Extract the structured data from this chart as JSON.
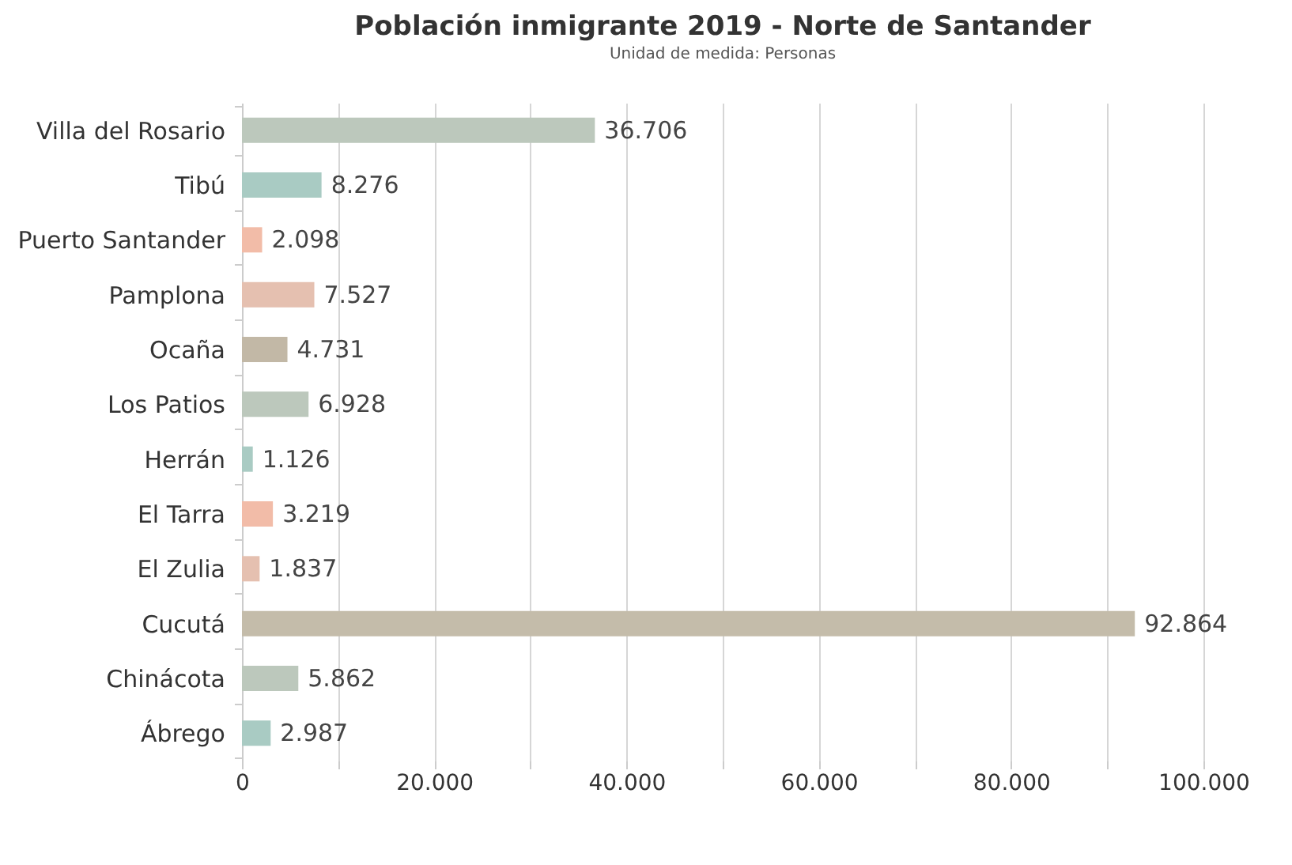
{
  "chart_data": {
    "type": "bar",
    "orientation": "horizontal",
    "title": "Población inmigrante 2019 - Norte de Santander",
    "subtitle": "Unidad de medida: Personas",
    "categories": [
      "Villa del Rosario",
      "Tibú",
      "Puerto Santander",
      "Pamplona",
      "Ocaña",
      "Los Patios",
      "Herrán",
      "El Tarra",
      "El Zulia",
      "Cucutá",
      "Chinácota",
      "Ábrego"
    ],
    "values": [
      36706,
      8276,
      2098,
      7527,
      4731,
      6928,
      1126,
      3219,
      1837,
      92864,
      5862,
      2987
    ],
    "value_labels": [
      "36.706",
      "8.276",
      "2.098",
      "7.527",
      "4.731",
      "6.928",
      "1.126",
      "3.219",
      "1.837",
      "92.864",
      "5.862",
      "2.987"
    ],
    "colors": [
      "#bcc8bc",
      "#a9cbc3",
      "#f2bca8",
      "#e5c0b0",
      "#c2b8a6",
      "#bcc8bc",
      "#a9cbc3",
      "#f2bca8",
      "#e5c0b0",
      "#c4bcaa",
      "#bcc8bc",
      "#a9cbc3"
    ],
    "xlim": [
      0,
      100000
    ],
    "xticks": [
      0,
      {
        "value": 10000,
        "label": null
      },
      {
        "value": 20000,
        "label": "20.000"
      },
      {
        "value": 30000,
        "label": null
      },
      {
        "value": 40000,
        "label": "40.000"
      },
      {
        "value": 50000,
        "label": null
      },
      {
        "value": 60000,
        "label": "60.000"
      },
      {
        "value": 70000,
        "label": null
      },
      {
        "value": 80000,
        "label": "80.000"
      },
      {
        "value": 90000,
        "label": null
      },
      {
        "value": 100000,
        "label": "100.000"
      }
    ],
    "grid": "x"
  }
}
